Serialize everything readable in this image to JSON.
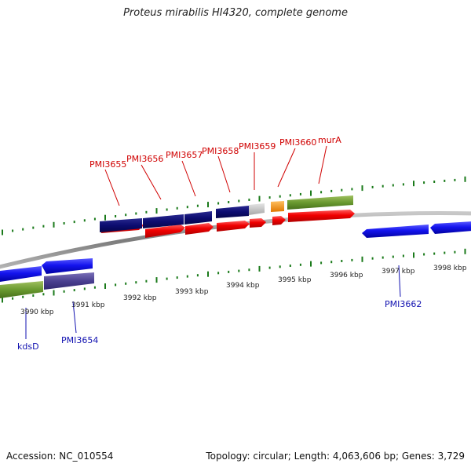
{
  "title": "Proteus mirabilis HI4320, complete genome",
  "footer": {
    "accession": "Accession: NC_010554",
    "summary": "Topology: circular; Length: 4,063,606 bp; Genes: 3,729"
  },
  "colors": {
    "backbone": "#8a8a8a",
    "tick": "#1a7a1a",
    "label_top": "#d00000",
    "label_bottom": "#1010b0",
    "kbp_text": "#222222"
  },
  "kbp_labels": [
    "3990 kbp",
    "3991 kbp",
    "3992 kbp",
    "3993 kbp",
    "3994 kbp",
    "3995 kbp",
    "3996 kbp",
    "3997 kbp",
    "3998 kbp"
  ],
  "top_labels": [
    "PMI3655",
    "PMI3656",
    "PMI3657",
    "PMI3658",
    "PMI3659",
    "PMI3660",
    "murA"
  ],
  "bottom_labels": [
    "kdsD",
    "PMI3654",
    "PMI3662"
  ]
}
